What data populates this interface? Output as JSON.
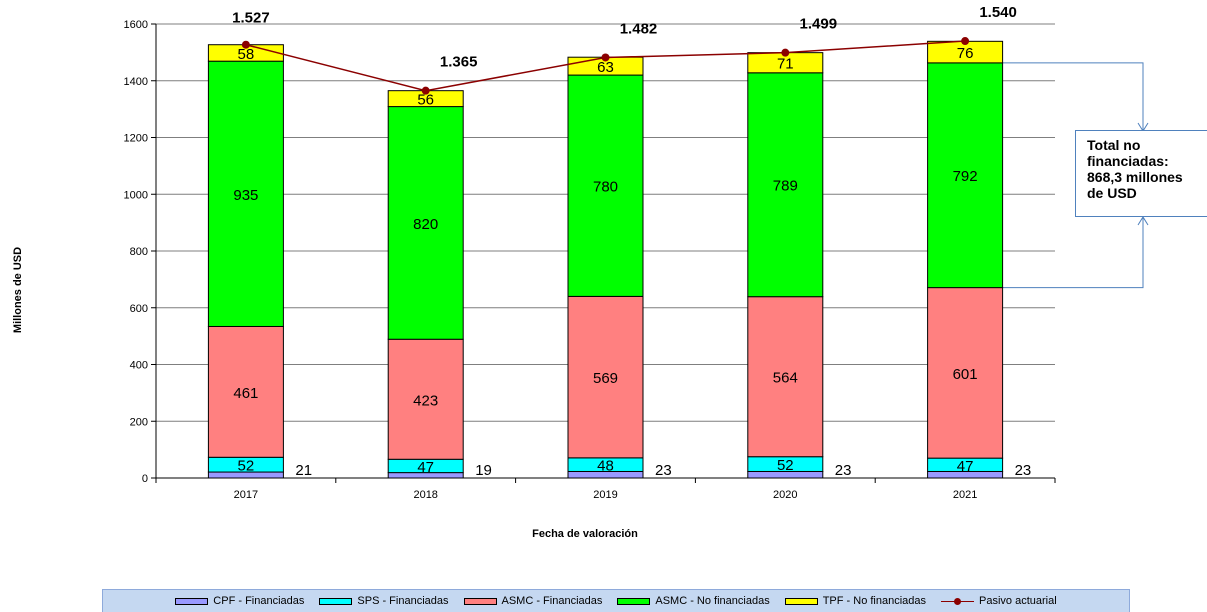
{
  "chart_data": {
    "type": "bar",
    "stacked": true,
    "categories": [
      "2017",
      "2018",
      "2019",
      "2020",
      "2021"
    ],
    "series": [
      {
        "name": "CPF - Financiadas",
        "values": [
          21,
          19,
          23,
          23,
          23
        ],
        "color": "#9999ff",
        "label_position": "outside"
      },
      {
        "name": "SPS - Financiadas",
        "values": [
          52,
          47,
          48,
          52,
          47
        ],
        "color": "#00ffff"
      },
      {
        "name": "ASMC - Financiadas",
        "values": [
          461,
          423,
          569,
          564,
          601
        ],
        "color": "#ff8080"
      },
      {
        "name": "ASMC - No financiadas",
        "values": [
          935,
          820,
          780,
          789,
          792
        ],
        "color": "#00ff00"
      },
      {
        "name": "TPF - No financiadas",
        "values": [
          58,
          56,
          63,
          71,
          76
        ],
        "color": "#ffff00"
      }
    ],
    "line": {
      "name": "Pasivo actuarial",
      "values": [
        1527,
        1365,
        1482,
        1499,
        1540
      ],
      "labels": [
        "1.527",
        "1.365",
        "1.482",
        "1.499",
        "1.540"
      ],
      "color": "#8b0000"
    },
    "xlabel": "Fecha de valoración",
    "ylabel": "Millones de USD",
    "ylim": [
      0,
      1600
    ],
    "yticks": [
      0,
      200,
      400,
      600,
      800,
      1000,
      1200,
      1400,
      1600
    ],
    "grid": true,
    "legend_position": "bottom",
    "annotation": "Total no\nfinanciadas:\n868,3 millones\nde USD"
  }
}
